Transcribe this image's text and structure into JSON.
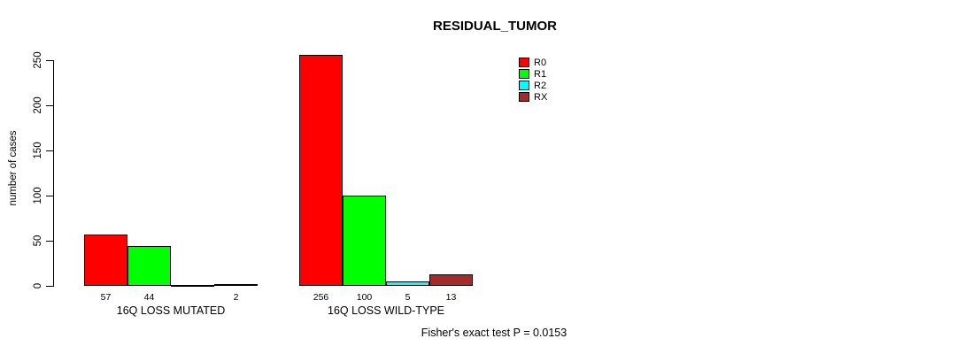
{
  "chart_data": {
    "type": "bar",
    "title": "RESIDUAL_TUMOR",
    "ylabel": "number of cases",
    "xlabel": "",
    "ylim": [
      0,
      250
    ],
    "yticks": [
      0,
      50,
      100,
      150,
      200,
      250
    ],
    "categories": [
      "16Q LOSS MUTATED",
      "16Q LOSS WILD-TYPE"
    ],
    "series": [
      {
        "name": "R0",
        "color": "#FF0000",
        "values": [
          57,
          256
        ]
      },
      {
        "name": "R1",
        "color": "#00FF00",
        "values": [
          44,
          100
        ]
      },
      {
        "name": "R2",
        "color": "#00FFFF",
        "values": [
          0,
          5
        ]
      },
      {
        "name": "RX",
        "color": "#A52A2A",
        "values": [
          2,
          13
        ]
      }
    ],
    "bar_value_labels": [
      [
        "57",
        "44",
        "",
        "2"
      ],
      [
        "256",
        "100",
        "5",
        "13"
      ]
    ],
    "legend_position": "top-right",
    "grid": false,
    "annotation": "Fisher's exact test P = 0.0153"
  }
}
